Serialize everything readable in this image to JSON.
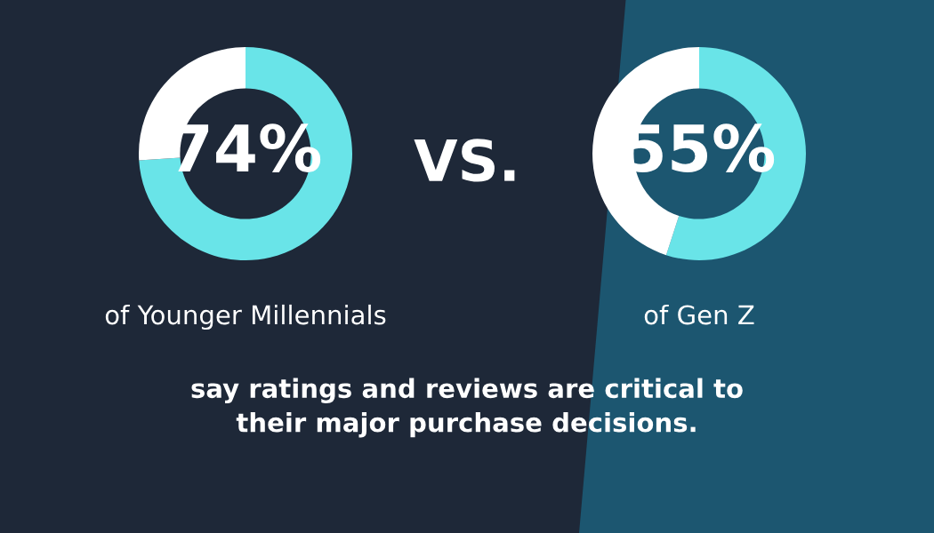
{
  "chart_data": [
    {
      "type": "donut",
      "categories": [
        null,
        null
      ],
      "values": [
        74,
        26
      ],
      "colors": [
        "#69e4e8",
        "#ffffff"
      ],
      "value_labels": [
        "74%",
        null
      ],
      "xlabel": "of Younger Millennials"
    },
    {
      "type": "donut",
      "categories": [
        null,
        null
      ],
      "values": [
        55,
        45
      ],
      "colors": [
        "#69e4e8",
        "#ffffff"
      ],
      "value_labels": [
        "55%",
        null
      ],
      "xlabel": "of Gen Z"
    },
    {
      "type": "other",
      "annotations": [
        "VS.",
        "say ratings and reviews are critical to\ntheir major purchase decisions."
      ]
    }
  ]
}
